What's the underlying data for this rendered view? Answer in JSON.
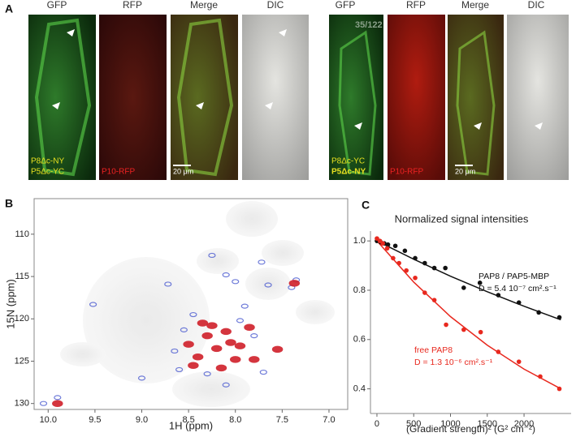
{
  "figure": {
    "panel_a": {
      "label": "A",
      "left": {
        "headers": [
          "GFP",
          "RFP",
          "Merge",
          "DIC"
        ],
        "gfp_labels": [
          "P8Δc-NY",
          "P5Δc-YC"
        ],
        "rfp_label": "P10-RFP",
        "scale_bar": "20 μm"
      },
      "right": {
        "headers": [
          "GFP",
          "RFP",
          "Merge",
          "DIC"
        ],
        "count": "35/122",
        "gfp_labels": [
          "P8Δc-YC",
          "P5Δc-NY"
        ],
        "rfp_label": "P10-RFP",
        "scale_bar": "20 μm"
      }
    },
    "panel_b_label": "B",
    "panel_c_label": "C"
  },
  "chart_data": [
    {
      "type": "nmr",
      "xlabel": "1H (ppm)",
      "ylabel": "15N (ppm)",
      "xlim": [
        10.15,
        6.8
      ],
      "ylim": [
        105.8,
        130.7
      ],
      "xticks": [
        {
          "value": 10,
          "label": "10.0"
        },
        9.5,
        {
          "value": 9,
          "label": "9.0"
        },
        8.5,
        {
          "value": 8,
          "label": "8.0"
        },
        7.5,
        {
          "value": 7,
          "label": "7.0"
        }
      ],
      "yticks": [
        110,
        115,
        120,
        125,
        130
      ],
      "series": [
        {
          "color": "#4a5ad0",
          "x": [
            8.25,
            8.1,
            8.0,
            7.65,
            7.4,
            7.35,
            7.72,
            9.52,
            8.72,
            9.9,
            10.05,
            9.0,
            8.3,
            8.1,
            7.9,
            7.8,
            8.55,
            8.6,
            7.7,
            8.45,
            7.95,
            8.65
          ],
          "values": [
            112.5,
            114.8,
            115.6,
            116.0,
            116.3,
            115.4,
            113.3,
            118.3,
            115.9,
            129.3,
            130.0,
            127.0,
            126.5,
            127.8,
            118.5,
            122.0,
            121.3,
            126.0,
            126.3,
            119.5,
            120.2,
            123.8
          ]
        },
        {
          "color": "#d0202a",
          "x": [
            8.3,
            8.1,
            8.2,
            8.4,
            8.0,
            7.85,
            7.55,
            8.5,
            8.15,
            7.8,
            8.35,
            9.9,
            7.37,
            8.25,
            8.05,
            8.45,
            7.95
          ],
          "values": [
            122.0,
            121.5,
            123.5,
            124.5,
            124.8,
            121.0,
            123.6,
            123.0,
            125.8,
            124.8,
            120.5,
            130.0,
            115.8,
            120.8,
            122.8,
            125.5,
            123.2
          ]
        }
      ]
    },
    {
      "type": "scatter",
      "title": "Normalized signal intensities",
      "xlabel": "(Gradient strength)² (G² cm⁻²)",
      "xlim": [
        -88,
        2640
      ],
      "ylim": [
        0.3,
        1.04
      ],
      "xticks": [
        0,
        500,
        1000,
        1500,
        2000
      ],
      "yticks": [
        0.4,
        0.6,
        0.8,
        {
          "value": 1,
          "label": "1.0"
        }
      ],
      "series": [
        {
          "color": "#111111",
          "x": [
            0,
            50,
            100,
            150,
            250,
            380,
            520,
            650,
            780,
            930,
            1180,
            1400,
            1650,
            1930,
            2200,
            2480
          ],
          "values": [
            1.0,
            0.995,
            0.99,
            0.985,
            0.98,
            0.96,
            0.93,
            0.91,
            0.89,
            0.89,
            0.81,
            0.83,
            0.78,
            0.75,
            0.71,
            0.69
          ]
        },
        {
          "color": "#e8281e",
          "x": [
            0,
            40,
            80,
            140,
            220,
            300,
            400,
            520,
            650,
            780,
            940,
            1180,
            1410,
            1650,
            1930,
            2220,
            2480
          ],
          "values": [
            1.01,
            1.0,
            0.99,
            0.97,
            0.93,
            0.91,
            0.88,
            0.85,
            0.79,
            0.76,
            0.66,
            0.64,
            0.63,
            0.55,
            0.51,
            0.45,
            0.4
          ]
        }
      ],
      "fit_lines": [
        {
          "color": "#111111",
          "x": [
            0,
            500,
            1000,
            1500,
            2000,
            2500
          ],
          "values": [
            1.0,
            0.926,
            0.857,
            0.794,
            0.735,
            0.68
          ]
        },
        {
          "color": "#e8281e",
          "x": [
            0,
            500,
            1000,
            1500,
            2000,
            2500
          ],
          "values": [
            1.0,
            0.833,
            0.693,
            0.577,
            0.48,
            0.4
          ]
        }
      ],
      "annotations": [
        "PAP8 / PAP5-MBP",
        "D = 5.4 10⁻⁷ cm².s⁻¹",
        "free PAP8",
        "D = 1.3 10⁻⁶ cm².s⁻¹"
      ]
    }
  ]
}
